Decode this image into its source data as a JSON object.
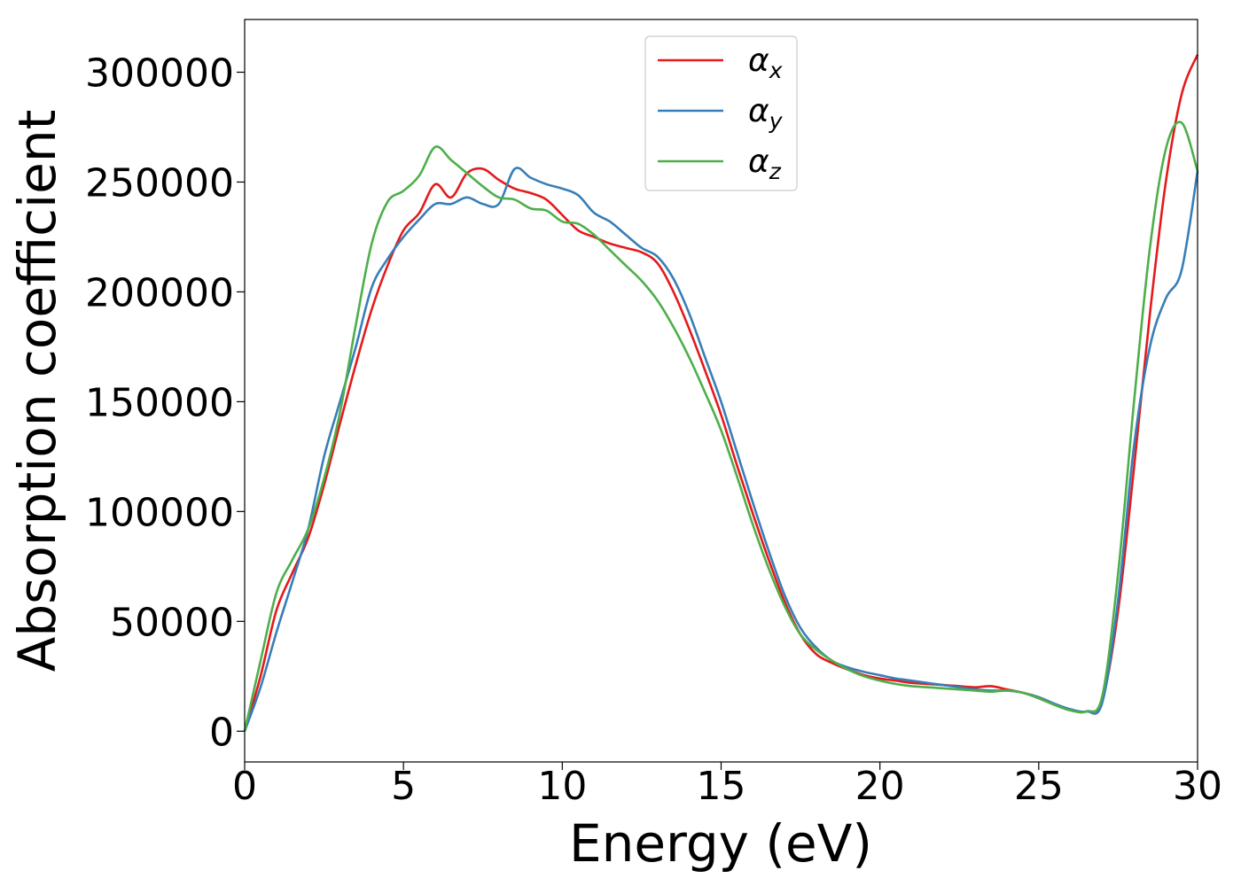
{
  "chart_data": {
    "type": "line",
    "title": "",
    "xlabel": "Energy (eV)",
    "ylabel": "Absorption coefficient",
    "xlim": [
      0,
      30
    ],
    "ylim": [
      -14000,
      324000
    ],
    "xticks": [
      0,
      5,
      10,
      15,
      20,
      25,
      30
    ],
    "yticks": [
      0,
      50000,
      100000,
      150000,
      200000,
      250000,
      300000
    ],
    "grid": false,
    "legend_position": "top-center",
    "series": [
      {
        "name": "α",
        "subscript": "x",
        "color": "#e41a1c",
        "x": [
          0,
          0.5,
          1,
          1.5,
          2,
          2.5,
          3,
          3.5,
          4,
          4.5,
          5,
          5.5,
          6,
          6.5,
          7,
          7.5,
          8,
          8.5,
          9,
          9.5,
          10,
          10.5,
          11,
          11.5,
          12,
          12.5,
          13,
          13.5,
          14,
          14.5,
          15,
          15.5,
          16,
          16.5,
          17,
          17.5,
          18,
          18.5,
          19,
          19.5,
          20,
          20.5,
          21,
          21.5,
          22,
          22.5,
          23,
          23.5,
          24,
          24.5,
          25,
          25.5,
          26,
          26.5,
          27,
          27.5,
          28,
          28.5,
          29,
          29.5,
          30
        ],
        "values": [
          0,
          25000,
          55000,
          72000,
          88000,
          112000,
          140000,
          167000,
          192000,
          212000,
          228000,
          236000,
          249000,
          243000,
          254000,
          256000,
          251000,
          247000,
          245000,
          242000,
          235000,
          228000,
          225000,
          222000,
          220000,
          218000,
          213000,
          200000,
          183000,
          164000,
          144000,
          121000,
          99000,
          78000,
          59000,
          44000,
          35000,
          31000,
          28000,
          25500,
          24000,
          23000,
          22000,
          21500,
          21000,
          20500,
          20000,
          20500,
          19000,
          17500,
          15000,
          12000,
          9500,
          9000,
          14000,
          55000,
          120000,
          190000,
          250000,
          290000,
          308000
        ]
      },
      {
        "name": "α",
        "subscript": "y",
        "color": "#377eb8",
        "x": [
          0,
          0.5,
          1,
          1.5,
          2,
          2.5,
          3,
          3.5,
          4,
          4.5,
          5,
          5.5,
          6,
          6.5,
          7,
          7.5,
          8,
          8.5,
          9,
          9.5,
          10,
          10.5,
          11,
          11.5,
          12,
          12.5,
          13,
          13.5,
          14,
          14.5,
          15,
          15.5,
          16,
          16.5,
          17,
          17.5,
          18,
          18.5,
          19,
          19.5,
          20,
          20.5,
          21,
          21.5,
          22,
          22.5,
          23,
          23.5,
          24,
          24.5,
          25,
          25.5,
          26,
          26.5,
          27,
          27.5,
          28,
          28.5,
          29,
          29.5,
          30
        ],
        "values": [
          0,
          20000,
          45000,
          68000,
          92000,
          125000,
          150000,
          175000,
          202000,
          215000,
          225000,
          233000,
          240000,
          240000,
          243000,
          240000,
          240000,
          256000,
          252000,
          249000,
          247000,
          244000,
          236000,
          232000,
          226000,
          220000,
          216000,
          206000,
          190000,
          170000,
          150000,
          127000,
          104000,
          82000,
          62000,
          47000,
          38000,
          32000,
          29000,
          27000,
          25500,
          24000,
          23000,
          22000,
          21000,
          20000,
          19000,
          18500,
          18500,
          17500,
          15500,
          12500,
          10000,
          9000,
          13000,
          60000,
          130000,
          175000,
          197000,
          210000,
          255000
        ]
      },
      {
        "name": "α",
        "subscript": "z",
        "color": "#4daf4a",
        "x": [
          0,
          0.5,
          1,
          1.5,
          2,
          2.5,
          3,
          3.5,
          4,
          4.5,
          5,
          5.5,
          6,
          6.5,
          7,
          7.5,
          8,
          8.5,
          9,
          9.5,
          10,
          10.5,
          11,
          11.5,
          12,
          12.5,
          13,
          13.5,
          14,
          14.5,
          15,
          15.5,
          16,
          16.5,
          17,
          17.5,
          18,
          18.5,
          19,
          19.5,
          20,
          20.5,
          21,
          21.5,
          22,
          22.5,
          23,
          23.5,
          24,
          24.5,
          25,
          25.5,
          26,
          26.5,
          27,
          27.5,
          28,
          28.5,
          29,
          29.5,
          30
        ],
        "values": [
          0,
          32000,
          63000,
          78000,
          92000,
          115000,
          145000,
          185000,
          222000,
          241000,
          246000,
          253000,
          266000,
          260000,
          254000,
          248000,
          243000,
          242000,
          238000,
          237000,
          232000,
          231000,
          226000,
          219000,
          212000,
          205000,
          196000,
          184000,
          170000,
          154000,
          137000,
          116000,
          94000,
          74000,
          57000,
          44000,
          37000,
          32000,
          28000,
          25000,
          23000,
          21500,
          20500,
          20000,
          19500,
          19000,
          18500,
          18000,
          18500,
          17500,
          15000,
          12000,
          9500,
          9000,
          16000,
          72000,
          150000,
          220000,
          265000,
          277000,
          255000
        ]
      }
    ]
  }
}
